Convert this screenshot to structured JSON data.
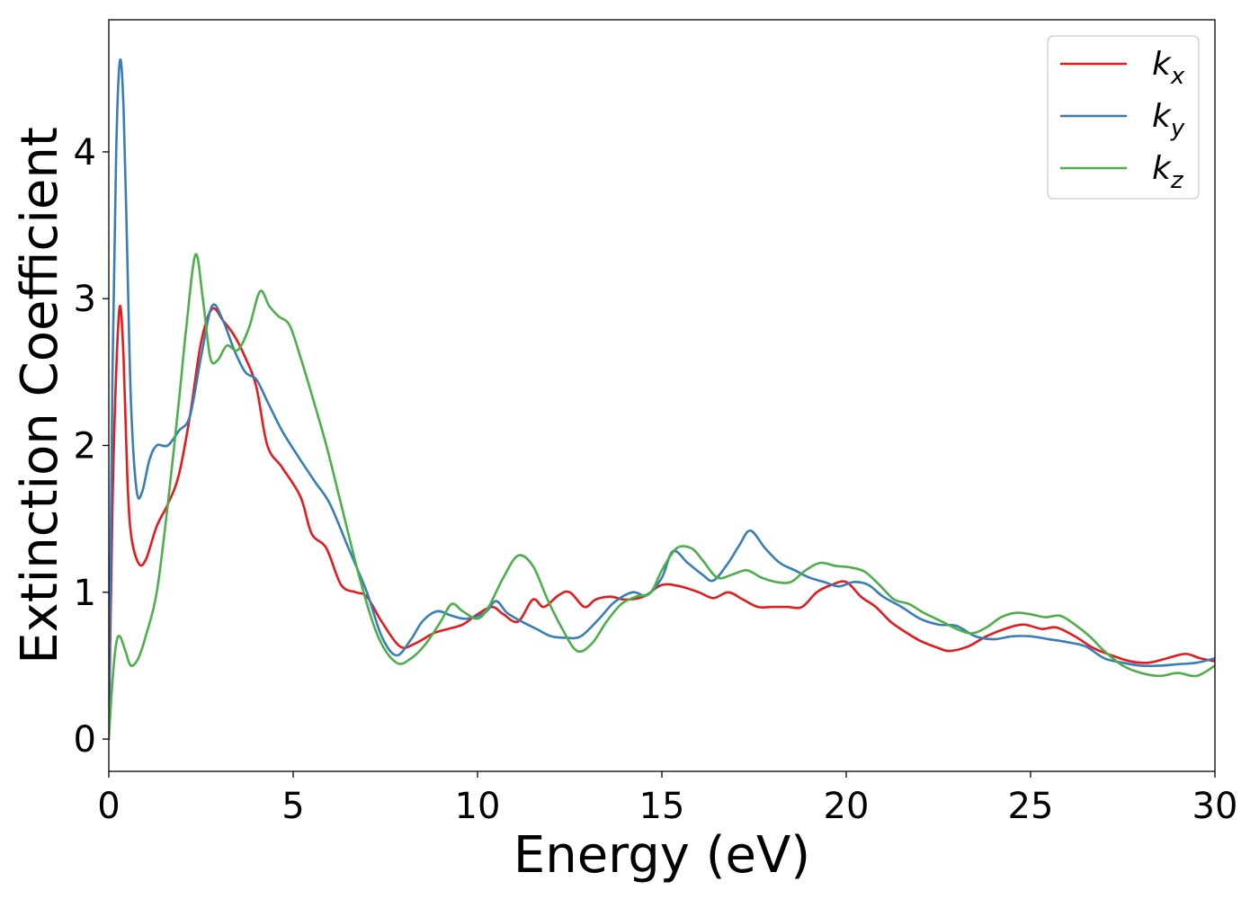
{
  "chart_data": {
    "type": "line",
    "title": "",
    "xlabel": "Energy (eV)",
    "ylabel": "Extinction Coefficient",
    "xlim": [
      0,
      30
    ],
    "ylim": [
      -0.22,
      4.9
    ],
    "xticks": [
      0,
      5,
      10,
      15,
      20,
      25,
      30
    ],
    "yticks": [
      0,
      1,
      2,
      3,
      4
    ],
    "grid": false,
    "legend_position": "upper right",
    "series": [
      {
        "name": "k",
        "subscript": "x",
        "color": "#e41a1c",
        "points": [
          [
            0,
            0
          ],
          [
            0.1,
            1.6
          ],
          [
            0.2,
            2.5
          ],
          [
            0.3,
            2.95
          ],
          [
            0.4,
            2.6
          ],
          [
            0.5,
            1.8
          ],
          [
            0.6,
            1.4
          ],
          [
            0.8,
            1.2
          ],
          [
            1.0,
            1.22
          ],
          [
            1.3,
            1.45
          ],
          [
            1.6,
            1.6
          ],
          [
            1.9,
            1.8
          ],
          [
            2.2,
            2.2
          ],
          [
            2.5,
            2.7
          ],
          [
            2.8,
            2.93
          ],
          [
            3.1,
            2.85
          ],
          [
            3.4,
            2.75
          ],
          [
            3.7,
            2.6
          ],
          [
            4.0,
            2.4
          ],
          [
            4.3,
            2.0
          ],
          [
            4.7,
            1.85
          ],
          [
            5.2,
            1.65
          ],
          [
            5.5,
            1.4
          ],
          [
            5.9,
            1.3
          ],
          [
            6.3,
            1.05
          ],
          [
            6.7,
            1.0
          ],
          [
            7.0,
            0.97
          ],
          [
            7.4,
            0.8
          ],
          [
            7.9,
            0.63
          ],
          [
            8.3,
            0.65
          ],
          [
            8.8,
            0.72
          ],
          [
            9.2,
            0.75
          ],
          [
            9.6,
            0.78
          ],
          [
            10.0,
            0.85
          ],
          [
            10.4,
            0.9
          ],
          [
            10.7,
            0.85
          ],
          [
            11.1,
            0.8
          ],
          [
            11.5,
            0.95
          ],
          [
            11.8,
            0.9
          ],
          [
            12.2,
            0.98
          ],
          [
            12.5,
            1.0
          ],
          [
            12.9,
            0.9
          ],
          [
            13.2,
            0.95
          ],
          [
            13.6,
            0.97
          ],
          [
            14.0,
            0.95
          ],
          [
            14.5,
            0.97
          ],
          [
            15.0,
            1.05
          ],
          [
            15.5,
            1.04
          ],
          [
            16.0,
            1.0
          ],
          [
            16.4,
            0.96
          ],
          [
            16.8,
            1.0
          ],
          [
            17.2,
            0.95
          ],
          [
            17.6,
            0.9
          ],
          [
            18.0,
            0.9
          ],
          [
            18.4,
            0.9
          ],
          [
            18.8,
            0.9
          ],
          [
            19.2,
            1.0
          ],
          [
            19.6,
            1.05
          ],
          [
            20.0,
            1.07
          ],
          [
            20.4,
            0.97
          ],
          [
            20.8,
            0.9
          ],
          [
            21.2,
            0.8
          ],
          [
            21.6,
            0.73
          ],
          [
            22.0,
            0.67
          ],
          [
            22.5,
            0.62
          ],
          [
            22.8,
            0.6
          ],
          [
            23.3,
            0.63
          ],
          [
            23.8,
            0.7
          ],
          [
            24.3,
            0.75
          ],
          [
            24.8,
            0.78
          ],
          [
            25.3,
            0.75
          ],
          [
            25.7,
            0.76
          ],
          [
            26.2,
            0.7
          ],
          [
            26.7,
            0.62
          ],
          [
            27.2,
            0.57
          ],
          [
            27.7,
            0.53
          ],
          [
            28.2,
            0.52
          ],
          [
            28.7,
            0.55
          ],
          [
            29.2,
            0.58
          ],
          [
            29.6,
            0.55
          ],
          [
            30.0,
            0.53
          ]
        ]
      },
      {
        "name": "k",
        "subscript": "y",
        "color": "#377eb8",
        "points": [
          [
            0,
            0
          ],
          [
            0.1,
            2.5
          ],
          [
            0.2,
            4.0
          ],
          [
            0.3,
            4.62
          ],
          [
            0.4,
            4.3
          ],
          [
            0.5,
            3.3
          ],
          [
            0.6,
            2.3
          ],
          [
            0.75,
            1.7
          ],
          [
            0.9,
            1.68
          ],
          [
            1.1,
            1.9
          ],
          [
            1.3,
            2.0
          ],
          [
            1.6,
            2.0
          ],
          [
            1.9,
            2.1
          ],
          [
            2.2,
            2.2
          ],
          [
            2.5,
            2.6
          ],
          [
            2.8,
            2.95
          ],
          [
            3.1,
            2.85
          ],
          [
            3.4,
            2.65
          ],
          [
            3.7,
            2.5
          ],
          [
            4.0,
            2.45
          ],
          [
            4.3,
            2.3
          ],
          [
            4.7,
            2.1
          ],
          [
            5.2,
            1.9
          ],
          [
            5.6,
            1.75
          ],
          [
            6.0,
            1.6
          ],
          [
            6.5,
            1.3
          ],
          [
            7.0,
            1.0
          ],
          [
            7.4,
            0.7
          ],
          [
            7.8,
            0.57
          ],
          [
            8.2,
            0.68
          ],
          [
            8.5,
            0.8
          ],
          [
            8.9,
            0.87
          ],
          [
            9.3,
            0.84
          ],
          [
            9.7,
            0.82
          ],
          [
            10.2,
            0.86
          ],
          [
            10.5,
            0.94
          ],
          [
            10.8,
            0.86
          ],
          [
            11.2,
            0.8
          ],
          [
            11.6,
            0.75
          ],
          [
            12.0,
            0.7
          ],
          [
            12.4,
            0.69
          ],
          [
            12.8,
            0.7
          ],
          [
            13.3,
            0.82
          ],
          [
            13.7,
            0.93
          ],
          [
            14.2,
            1.0
          ],
          [
            14.6,
            0.98
          ],
          [
            15.0,
            1.1
          ],
          [
            15.3,
            1.28
          ],
          [
            15.7,
            1.2
          ],
          [
            16.1,
            1.12
          ],
          [
            16.4,
            1.08
          ],
          [
            16.8,
            1.2
          ],
          [
            17.1,
            1.32
          ],
          [
            17.4,
            1.42
          ],
          [
            17.8,
            1.3
          ],
          [
            18.2,
            1.2
          ],
          [
            18.6,
            1.15
          ],
          [
            19.0,
            1.1
          ],
          [
            19.4,
            1.07
          ],
          [
            19.8,
            1.04
          ],
          [
            20.2,
            1.07
          ],
          [
            20.6,
            1.05
          ],
          [
            21.0,
            0.97
          ],
          [
            21.5,
            0.9
          ],
          [
            22.0,
            0.82
          ],
          [
            22.5,
            0.78
          ],
          [
            23.0,
            0.77
          ],
          [
            23.5,
            0.7
          ],
          [
            24.0,
            0.68
          ],
          [
            24.5,
            0.7
          ],
          [
            25.0,
            0.7
          ],
          [
            25.5,
            0.68
          ],
          [
            26.0,
            0.66
          ],
          [
            26.5,
            0.63
          ],
          [
            27.0,
            0.55
          ],
          [
            27.5,
            0.52
          ],
          [
            28.0,
            0.5
          ],
          [
            28.5,
            0.5
          ],
          [
            29.0,
            0.51
          ],
          [
            29.5,
            0.52
          ],
          [
            30.0,
            0.55
          ]
        ]
      },
      {
        "name": "k",
        "subscript": "z",
        "color": "#4daf4a",
        "points": [
          [
            0,
            0
          ],
          [
            0.1,
            0.4
          ],
          [
            0.2,
            0.65
          ],
          [
            0.3,
            0.7
          ],
          [
            0.45,
            0.6
          ],
          [
            0.6,
            0.5
          ],
          [
            0.8,
            0.55
          ],
          [
            1.0,
            0.7
          ],
          [
            1.3,
            1.0
          ],
          [
            1.6,
            1.6
          ],
          [
            1.9,
            2.3
          ],
          [
            2.1,
            2.8
          ],
          [
            2.35,
            3.3
          ],
          [
            2.55,
            3.0
          ],
          [
            2.75,
            2.6
          ],
          [
            2.95,
            2.58
          ],
          [
            3.2,
            2.68
          ],
          [
            3.5,
            2.65
          ],
          [
            3.8,
            2.8
          ],
          [
            4.1,
            3.05
          ],
          [
            4.35,
            2.95
          ],
          [
            4.6,
            2.88
          ],
          [
            4.9,
            2.82
          ],
          [
            5.2,
            2.6
          ],
          [
            5.5,
            2.35
          ],
          [
            5.9,
            2.0
          ],
          [
            6.3,
            1.6
          ],
          [
            6.8,
            1.1
          ],
          [
            7.3,
            0.7
          ],
          [
            7.8,
            0.52
          ],
          [
            8.2,
            0.55
          ],
          [
            8.6,
            0.65
          ],
          [
            9.0,
            0.8
          ],
          [
            9.3,
            0.92
          ],
          [
            9.6,
            0.87
          ],
          [
            10.0,
            0.82
          ],
          [
            10.3,
            0.9
          ],
          [
            10.7,
            1.1
          ],
          [
            11.1,
            1.25
          ],
          [
            11.5,
            1.18
          ],
          [
            11.9,
            0.95
          ],
          [
            12.3,
            0.75
          ],
          [
            12.7,
            0.6
          ],
          [
            13.1,
            0.65
          ],
          [
            13.5,
            0.8
          ],
          [
            13.9,
            0.92
          ],
          [
            14.3,
            0.97
          ],
          [
            14.7,
            1.0
          ],
          [
            15.0,
            1.15
          ],
          [
            15.4,
            1.3
          ],
          [
            15.8,
            1.3
          ],
          [
            16.1,
            1.22
          ],
          [
            16.5,
            1.1
          ],
          [
            16.9,
            1.12
          ],
          [
            17.3,
            1.15
          ],
          [
            17.7,
            1.1
          ],
          [
            18.1,
            1.07
          ],
          [
            18.5,
            1.07
          ],
          [
            18.9,
            1.15
          ],
          [
            19.3,
            1.2
          ],
          [
            19.7,
            1.18
          ],
          [
            20.1,
            1.17
          ],
          [
            20.5,
            1.14
          ],
          [
            20.9,
            1.05
          ],
          [
            21.3,
            0.95
          ],
          [
            21.7,
            0.92
          ],
          [
            22.1,
            0.86
          ],
          [
            22.6,
            0.8
          ],
          [
            23.0,
            0.75
          ],
          [
            23.4,
            0.72
          ],
          [
            23.8,
            0.76
          ],
          [
            24.2,
            0.83
          ],
          [
            24.6,
            0.86
          ],
          [
            25.0,
            0.85
          ],
          [
            25.4,
            0.83
          ],
          [
            25.8,
            0.84
          ],
          [
            26.2,
            0.78
          ],
          [
            26.6,
            0.7
          ],
          [
            27.0,
            0.6
          ],
          [
            27.5,
            0.5
          ],
          [
            28.0,
            0.45
          ],
          [
            28.5,
            0.43
          ],
          [
            29.0,
            0.45
          ],
          [
            29.5,
            0.43
          ],
          [
            30.0,
            0.5
          ]
        ]
      }
    ]
  }
}
